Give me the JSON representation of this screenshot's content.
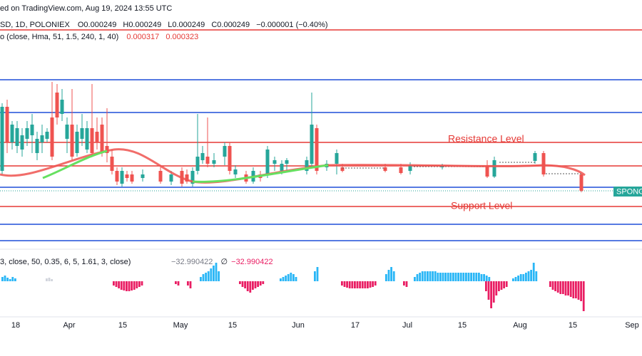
{
  "header": {
    "watermark": "ed on TradingView.com, Aug 19, 2024 13:55 UTC",
    "ohlc": {
      "symbol": "SD, 1D, POLONIEX",
      "o": "O0.000249",
      "h": "H0.000249",
      "l": "L0.000249",
      "c": "C0.000249",
      "change": "−0.000001 (−0.40%)"
    },
    "indicator": {
      "name": "o (close, Hma, 51, 1.5, 240, 1, 40)",
      "v1": "0.000317",
      "v2": "0.000323"
    }
  },
  "annotations": {
    "resistance": "Resistance Level",
    "support": "Support Level"
  },
  "price_tag": "SPONG",
  "oscillator": {
    "name": "3, close, 50, 0.35, 6, 5, 1.61, 3, close)",
    "v1": "−32.990422",
    "symbol": "∅",
    "v2": "−32.990422"
  },
  "x_axis": [
    "18",
    "Apr",
    "15",
    "May",
    "15",
    "Jun",
    "17",
    "Jul",
    "15",
    "Aug",
    "15",
    "Sep"
  ]
}
